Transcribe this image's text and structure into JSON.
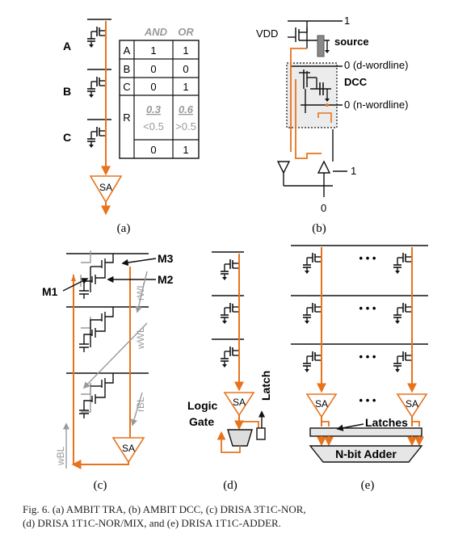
{
  "panel_a": {
    "row_labels": [
      "A",
      "B",
      "C"
    ],
    "sa": "SA",
    "tag": "(a)",
    "table": {
      "head_and": "AND",
      "head_or": "OR",
      "rows": [
        {
          "label": "A",
          "and": "1",
          "or": "1"
        },
        {
          "label": "B",
          "and": "0",
          "or": "0"
        },
        {
          "label": "C",
          "and": "0",
          "or": "1"
        }
      ],
      "r_label": "R",
      "r_and_top": "0.3",
      "r_or_top": "0.6",
      "r_and_bottom": "<0.5",
      "r_or_bottom": ">0.5",
      "out_and": "0",
      "out_or": "1"
    }
  },
  "panel_b": {
    "vdd": "VDD",
    "one_top": "1",
    "source": "source",
    "d_wordline": "0 (d-wordline)",
    "dcc": "DCC",
    "n_wordline": "0 (n-wordline)",
    "one_right": "1",
    "zero_bottom": "0",
    "tag": "(b)"
  },
  "panel_c": {
    "m3": "M3",
    "m2": "M2",
    "m1": "M1",
    "rwl": "rWL",
    "wwl": "wWL",
    "rbl": "rBL",
    "wbl": "wBL",
    "sa": "SA",
    "tag": "(c)"
  },
  "panel_d": {
    "sa": "SA",
    "logic": "Logic",
    "gate": "Gate",
    "latch": "Latch",
    "tag": "(d)"
  },
  "panel_e": {
    "dots": "• • •",
    "sa": "SA",
    "latches": "Latches",
    "adder": "N-bit Adder",
    "tag": "(e)"
  },
  "caption": {
    "line1": "Fig. 6.    (a) AMBIT TRA, (b) AMBIT DCC, (c) DRISA 3T1C-NOR,",
    "line2": "(d) DRISA 1T1C-NOR/MIX, and (e) DRISA 1T1C-ADDER."
  },
  "colors": {
    "orange": "#e8731c",
    "gray": "#a6a6a6",
    "black": "#111111",
    "shade": "#ececec"
  }
}
